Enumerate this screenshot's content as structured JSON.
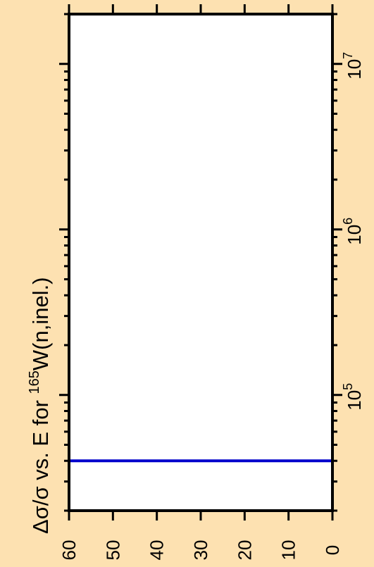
{
  "chart_data": {
    "type": "line",
    "title": {
      "prefix": "Δσ/σ vs. E for ",
      "isotope_mass": "165",
      "suffix": "W(n,inel.)"
    },
    "orientation": "rotated-90-ccw",
    "value_axis": {
      "label": "",
      "lim": [
        0,
        60
      ],
      "ticks": [
        0,
        10,
        20,
        30,
        40,
        50,
        60
      ],
      "tick_labels": [
        "0",
        "10",
        "20",
        "30",
        "40",
        "50",
        "60"
      ]
    },
    "energy_axis": {
      "label": "",
      "scale": "log",
      "lim": [
        20000,
        20000000
      ],
      "major_ticks": [
        100000,
        1000000,
        10000000
      ],
      "major_tick_labels": [
        {
          "base": "10",
          "exp": "5"
        },
        {
          "base": "10",
          "exp": "6"
        },
        {
          "base": "10",
          "exp": "7"
        }
      ]
    },
    "series": [
      {
        "color": "#0000cc",
        "points": [
          {
            "energy": 20000,
            "value": 60
          },
          {
            "energy": 40000,
            "value": 60
          },
          {
            "energy": 40000,
            "value": 0
          },
          {
            "energy": 20000000,
            "value": 0
          },
          {
            "energy": 20000000,
            "value": 60
          }
        ]
      }
    ],
    "colors": {
      "background": "#fde1b1",
      "plot_area": "#ffffff",
      "frame": "#000000",
      "series": "#0000cc"
    }
  }
}
